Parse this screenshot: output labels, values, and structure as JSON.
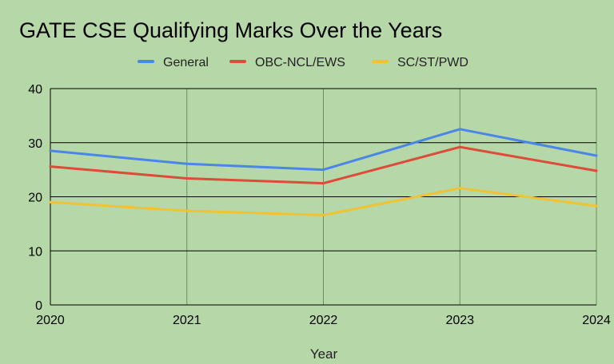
{
  "chart_data": {
    "type": "line",
    "title": "GATE CSE Qualifying Marks Over the Years",
    "xlabel": "Year",
    "ylabel": "",
    "x": [
      "2020",
      "2021",
      "2022",
      "2023",
      "2024"
    ],
    "ylim": [
      0,
      40
    ],
    "yticks": [
      "0",
      "10",
      "20",
      "30",
      "40"
    ],
    "grid": true,
    "legend_position": "top-center",
    "series": [
      {
        "name": "General",
        "color": "#4a86e8",
        "values": [
          28.5,
          26.1,
          25.0,
          32.5,
          27.6
        ]
      },
      {
        "name": "OBC-NCL/EWS",
        "color": "#dd4b39",
        "values": [
          25.6,
          23.4,
          22.5,
          29.2,
          24.8
        ]
      },
      {
        "name": "SC/ST/PWD",
        "color": "#f1c232",
        "values": [
          19.0,
          17.4,
          16.6,
          21.6,
          18.3
        ]
      }
    ]
  }
}
